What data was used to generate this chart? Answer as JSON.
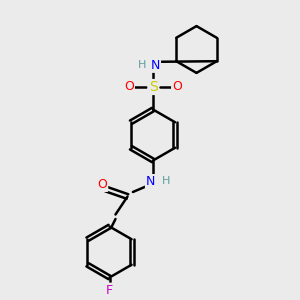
{
  "background_color": "#ebebeb",
  "atom_colors": {
    "C": "#000000",
    "H": "#5f9ea0",
    "N": "#0000ff",
    "O": "#ff0000",
    "S": "#cccc00",
    "F": "#cc00cc"
  },
  "bond_color": "#000000",
  "bond_width": 1.8,
  "xlim": [
    0,
    10
  ],
  "ylim": [
    0,
    10
  ]
}
